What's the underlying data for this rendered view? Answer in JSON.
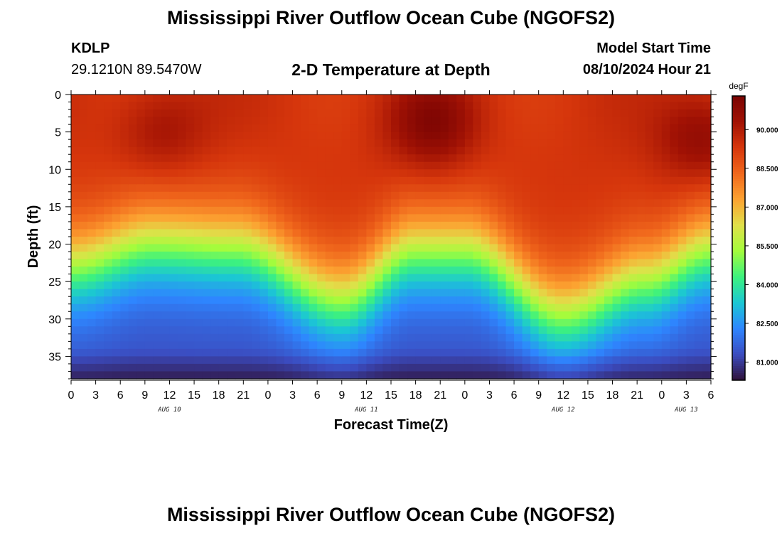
{
  "header": {
    "title": "Mississippi River Outflow Ocean Cube (NGOFS2)",
    "station_id": "KDLP",
    "station_coords": "29.1210N  89.5470W",
    "subtitle": "2-D Temperature at Depth",
    "model_start_label": "Model Start Time",
    "model_start_value": "08/10/2024 Hour 21"
  },
  "footer": {
    "title": "Mississippi River Outflow Ocean Cube (NGOFS2)"
  },
  "chart_data": {
    "type": "heatmap",
    "title": "2-D Temperature at Depth",
    "xlabel": "Forecast Time(Z)",
    "ylabel": "Depth (ft)",
    "x_ticks": [
      "0",
      "3",
      "6",
      "9",
      "12",
      "15",
      "18",
      "21",
      "0",
      "3",
      "6",
      "9",
      "12",
      "15",
      "18",
      "21",
      "0",
      "3",
      "6",
      "9",
      "12",
      "15",
      "18",
      "21",
      "0",
      "3",
      "6"
    ],
    "x_range_hours": [
      0,
      78
    ],
    "date_labels": [
      {
        "label": "AUG 10",
        "hour": 12
      },
      {
        "label": "AUG 11",
        "hour": 36
      },
      {
        "label": "AUG 12",
        "hour": 60
      },
      {
        "label": "AUG 13",
        "hour": 75
      }
    ],
    "y_ticks": [
      0,
      5,
      10,
      15,
      20,
      25,
      30,
      35
    ],
    "y_range_ft": [
      0,
      38
    ],
    "colorbar": {
      "unit": "degF",
      "range": [
        80.3,
        91.3
      ],
      "tick_labels": [
        "81.000",
        "82.500",
        "84.000",
        "85.500",
        "87.000",
        "88.500",
        "90.000"
      ],
      "tick_values": [
        81.0,
        82.5,
        84.0,
        85.5,
        87.0,
        88.5,
        90.0
      ]
    },
    "field_description_points": {
      "thermocline_depth_ft": [
        {
          "hour": 0,
          "depth": 23
        },
        {
          "hour": 10,
          "depth": 20
        },
        {
          "hour": 20,
          "depth": 20.5
        },
        {
          "hour": 33,
          "depth": 27.5
        },
        {
          "hour": 42,
          "depth": 21
        },
        {
          "hour": 48,
          "depth": 21
        },
        {
          "hour": 60,
          "depth": 29.5
        },
        {
          "hour": 70,
          "depth": 25
        },
        {
          "hour": 78,
          "depth": 21
        }
      ],
      "surface_hotspots": [
        {
          "hour": 11,
          "depth": 5,
          "value": 90.6
        },
        {
          "hour": 44,
          "depth": 4,
          "value": 91.2
        },
        {
          "hour": 77,
          "depth": 6,
          "value": 91.0
        }
      ]
    }
  },
  "colors": {
    "colormap": [
      "#30123b",
      "#3b4cc0",
      "#2e86ff",
      "#1bc7d3",
      "#3df27e",
      "#a4fc3c",
      "#e0e04a",
      "#fca231",
      "#f0671c",
      "#d6360c",
      "#a11204",
      "#7a0403"
    ]
  }
}
